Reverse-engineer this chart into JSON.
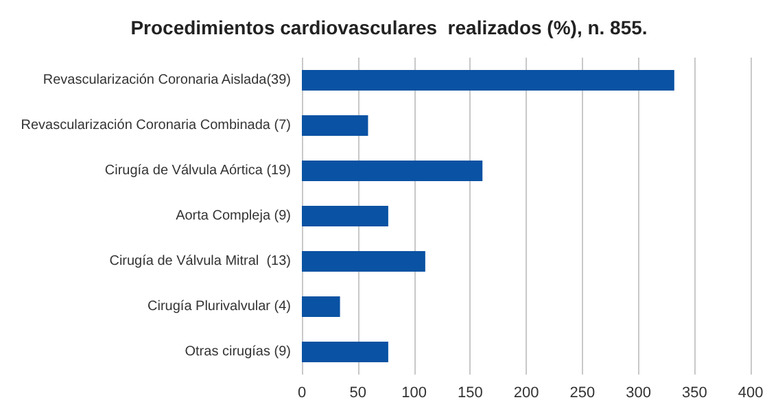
{
  "chart_data": {
    "type": "bar",
    "orientation": "horizontal",
    "title": "Procedimientos cardiovasculares  realizados (%), n. 855.",
    "categories": [
      "Revascularización Coronaria Aislada(39)",
      "Revascularización Coronaria Combinada (7)",
      "Cirugía de Válvula Aórtica (19)",
      "Aorta Compleja (9)",
      "Cirugía de Válvula Mitral  (13)",
      "Cirugía Plurivalvular (4)",
      "Otras cirugías (9)"
    ],
    "values": [
      332,
      59,
      161,
      77,
      110,
      34,
      77
    ],
    "color": "#0a52a3",
    "xlim": [
      0,
      400
    ],
    "xticks": [
      0,
      50,
      100,
      150,
      200,
      250,
      300,
      350,
      400
    ],
    "grid": "x"
  }
}
